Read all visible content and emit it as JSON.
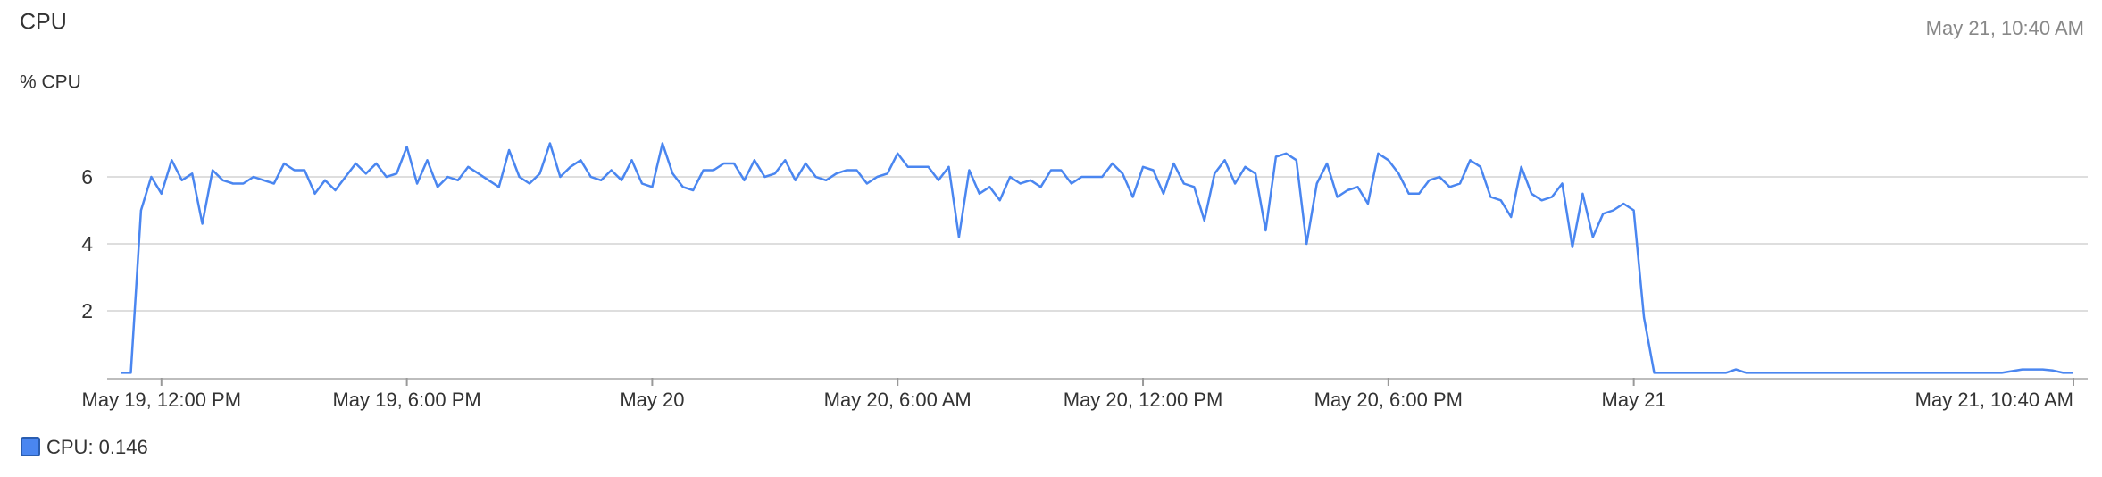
{
  "chart_data": {
    "type": "line",
    "title": "CPU",
    "y_label": "% CPU",
    "timestamp": "May 21, 10:40 AM",
    "categories": [
      null,
      null,
      null,
      null,
      "May 19, 12:00 PM",
      null,
      null,
      null,
      null,
      null,
      null,
      null,
      null,
      null,
      null,
      null,
      null,
      null,
      null,
      null,
      null,
      null,
      null,
      null,
      null,
      null,
      null,
      null,
      "May 19, 6:00 PM",
      null,
      null,
      null,
      null,
      null,
      null,
      null,
      null,
      null,
      null,
      null,
      null,
      null,
      null,
      null,
      null,
      null,
      null,
      null,
      null,
      null,
      null,
      null,
      "May 20",
      null,
      null,
      null,
      null,
      null,
      null,
      null,
      null,
      null,
      null,
      null,
      null,
      null,
      null,
      null,
      null,
      null,
      null,
      null,
      null,
      null,
      null,
      null,
      "May 20, 6:00 AM",
      null,
      null,
      null,
      null,
      null,
      null,
      null,
      null,
      null,
      null,
      null,
      null,
      null,
      null,
      null,
      null,
      null,
      null,
      null,
      null,
      null,
      null,
      null,
      "May 20, 12:00 PM",
      null,
      null,
      null,
      null,
      null,
      null,
      null,
      null,
      null,
      null,
      null,
      null,
      null,
      null,
      null,
      null,
      null,
      null,
      null,
      null,
      null,
      null,
      null,
      "May 20, 6:00 PM",
      null,
      null,
      null,
      null,
      null,
      null,
      null,
      null,
      null,
      null,
      null,
      null,
      null,
      null,
      null,
      null,
      null,
      null,
      null,
      null,
      null,
      null,
      null,
      "May 21",
      null,
      null,
      null,
      null,
      null,
      null,
      null,
      null,
      null,
      null,
      null,
      null,
      null,
      null,
      null,
      null,
      null,
      null,
      null,
      null,
      null,
      null,
      null,
      null,
      null,
      null,
      null,
      null,
      null,
      null,
      null,
      null,
      null,
      null,
      null,
      null,
      null,
      null,
      null,
      null,
      null,
      null,
      "May 21, 10:40 AM"
    ],
    "series": [
      {
        "name": "CPU: 0.146",
        "color": "#4a86f0",
        "values": [
          0.15,
          0.15,
          5.0,
          6.0,
          5.5,
          6.5,
          5.9,
          6.1,
          4.6,
          6.2,
          5.9,
          5.8,
          5.8,
          6.0,
          5.9,
          5.8,
          6.4,
          6.2,
          6.2,
          5.5,
          5.9,
          5.6,
          6.0,
          6.4,
          6.1,
          6.4,
          6.0,
          6.1,
          6.9,
          5.8,
          6.5,
          5.7,
          6.0,
          5.9,
          6.3,
          6.1,
          5.9,
          5.7,
          6.8,
          6.0,
          5.8,
          6.1,
          7.0,
          6.0,
          6.3,
          6.5,
          6.0,
          5.9,
          6.2,
          5.9,
          6.5,
          5.8,
          5.7,
          7.0,
          6.1,
          5.7,
          5.6,
          6.2,
          6.2,
          6.4,
          6.4,
          5.9,
          6.5,
          6.0,
          6.1,
          6.5,
          5.9,
          6.4,
          6.0,
          5.9,
          6.1,
          6.2,
          6.2,
          5.8,
          6.0,
          6.1,
          6.7,
          6.3,
          6.3,
          6.3,
          5.9,
          6.3,
          4.2,
          6.2,
          5.5,
          5.7,
          5.3,
          6.0,
          5.8,
          5.9,
          5.7,
          6.2,
          6.2,
          5.8,
          6.0,
          6.0,
          6.0,
          6.4,
          6.1,
          5.4,
          6.3,
          6.2,
          5.5,
          6.4,
          5.8,
          5.7,
          4.7,
          6.1,
          6.5,
          5.8,
          6.3,
          6.1,
          4.4,
          6.6,
          6.7,
          6.5,
          4.0,
          5.8,
          6.4,
          5.4,
          5.6,
          5.7,
          5.2,
          6.7,
          6.5,
          6.1,
          5.5,
          5.5,
          5.9,
          6.0,
          5.7,
          5.8,
          6.5,
          6.3,
          5.4,
          5.3,
          4.8,
          6.3,
          5.5,
          5.3,
          5.4,
          5.8,
          3.9,
          5.5,
          4.2,
          4.9,
          5.0,
          5.2,
          5.0,
          1.8,
          0.15,
          0.15,
          0.15,
          0.15,
          0.15,
          0.15,
          0.15,
          0.15,
          0.25,
          0.15,
          0.15,
          0.15,
          0.15,
          0.15,
          0.15,
          0.15,
          0.15,
          0.15,
          0.15,
          0.15,
          0.15,
          0.15,
          0.15,
          0.15,
          0.15,
          0.15,
          0.15,
          0.15,
          0.15,
          0.15,
          0.15,
          0.15,
          0.15,
          0.15,
          0.15,
          0.2,
          0.25,
          0.25,
          0.25,
          0.22,
          0.15,
          0.15
        ]
      }
    ],
    "ylim": [
      0,
      8
    ],
    "yticks": [
      2,
      4,
      6
    ],
    "grid": true
  }
}
